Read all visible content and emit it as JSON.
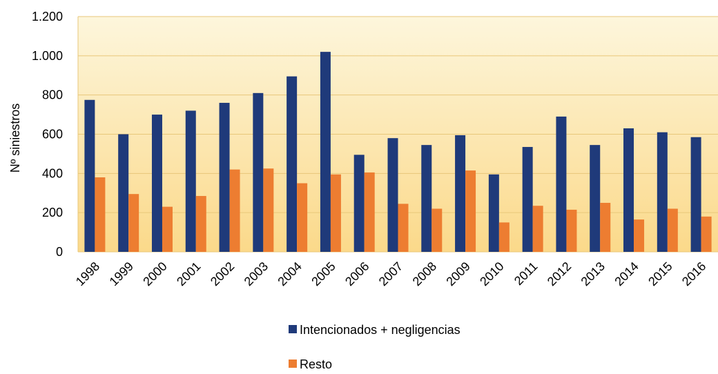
{
  "chart_data": {
    "type": "bar",
    "ylabel": "Nº siniestros",
    "categories": [
      "1998",
      "1999",
      "2000",
      "2001",
      "2002",
      "2003",
      "2004",
      "2005",
      "2006",
      "2007",
      "2008",
      "2009",
      "2010",
      "2011",
      "2012",
      "2013",
      "2014",
      "2015",
      "2016"
    ],
    "series": [
      {
        "name": "Intencionados + negligencias",
        "color": "#1f3a7a",
        "values": [
          775,
          600,
          700,
          720,
          760,
          810,
          895,
          1020,
          495,
          580,
          545,
          595,
          395,
          535,
          690,
          545,
          630,
          610,
          585
        ]
      },
      {
        "name": "Resto",
        "color": "#ed7d31",
        "values": [
          380,
          295,
          230,
          285,
          420,
          425,
          350,
          395,
          405,
          245,
          220,
          415,
          150,
          235,
          215,
          250,
          165,
          220,
          180
        ]
      }
    ],
    "ylim": [
      0,
      1200
    ],
    "yticks": [
      0,
      200,
      400,
      600,
      800,
      {
        "value": 1000,
        "label": "1.000"
      },
      {
        "value": 1200,
        "label": "1.200"
      }
    ],
    "grid": true,
    "legend": "bottom"
  }
}
